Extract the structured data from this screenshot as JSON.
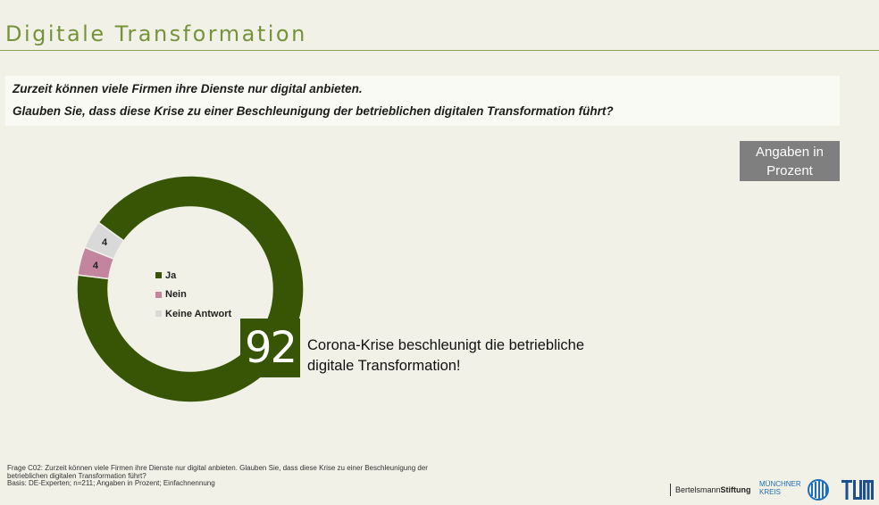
{
  "page": {
    "title": "Digitale Transformation",
    "question_line1": "Zurzeit können viele Firmen ihre Dienste nur digital anbieten.",
    "question_line2": "Glauben Sie, dass diese Krise zu einer Beschleunigung der betrieblichen digitalen Transformation führt?",
    "unit_badge": "Angaben in Prozent",
    "headline_value": "92",
    "headline_text": "Corona-Krise beschleunigt die betriebliche digitale Transformation!",
    "footnote_line1": "Frage C02: Zurzeit können viele Firmen ihre Dienste nur digital anbieten. Glauben Sie, dass diese Krise zu einer Beschleunigung der",
    "footnote_line2": "betrieblichen digitalen Transformation führt?",
    "footnote_line3": "Basis: DE-Experten; n=211; Angaben in Prozent; Einfachnennung",
    "logo_bertelsmann_regular": "Bertelsmann",
    "logo_bertelsmann_bold": "Stiftung",
    "logo_mk_line1": "MÜNCHNER",
    "logo_mk_line2": "KREIS",
    "logo_tum": "TUM"
  },
  "colors": {
    "accent": "#76933c",
    "ja": "#375505",
    "nein": "#c2859d",
    "keine_antwort": "#d9d9d9",
    "badge": "#7f7f7f"
  },
  "chart_data": {
    "type": "pie",
    "variant": "donut",
    "categories": [
      "Ja",
      "Nein",
      "Keine Antwort"
    ],
    "values": [
      92,
      4,
      4
    ],
    "data_labels": [
      "92",
      "4",
      "4"
    ],
    "legend_position": "center"
  }
}
